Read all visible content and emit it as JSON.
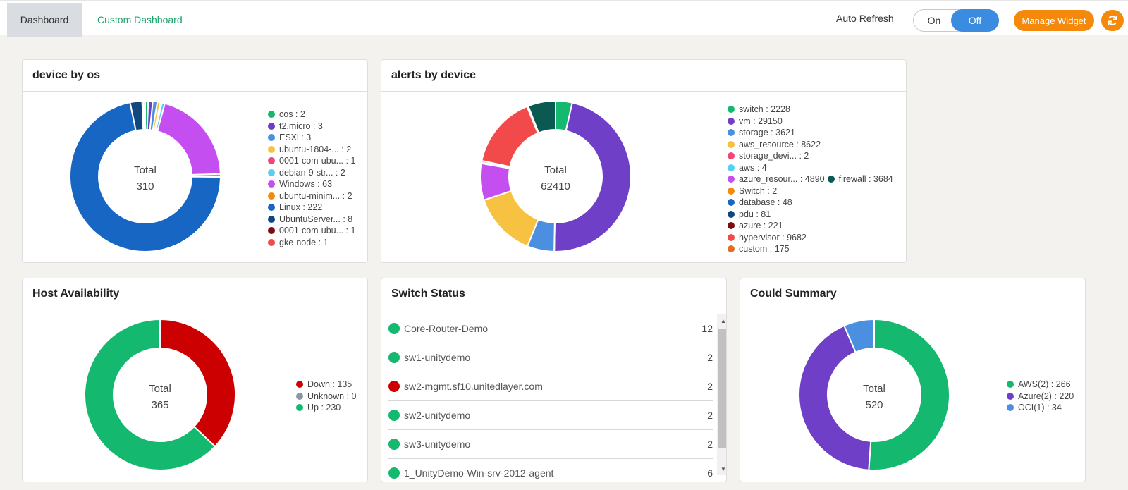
{
  "tabs": {
    "dashboard": "Dashboard",
    "custom": "Custom Dashboard"
  },
  "auto_refresh": {
    "label": "Auto Refresh",
    "on": "On",
    "off": "Off",
    "state": "Off"
  },
  "manage_widget": "Manage Widget",
  "icons": {
    "refresh": "refresh-icon"
  },
  "device_by_os": {
    "title": "device by os",
    "total_label": "Total",
    "total": "310",
    "legend": [
      {
        "label": "cos : 2",
        "color": "#14b86e"
      },
      {
        "label": "t2.micro : 3",
        "color": "#6f3fc7"
      },
      {
        "label": "ESXi : 3",
        "color": "#4b8fe0"
      },
      {
        "label": "ubuntu-1804-... : 2",
        "color": "#f7c242"
      },
      {
        "label": "0001-com-ubu... : 1",
        "color": "#f0477a"
      },
      {
        "label": "debian-9-str... : 2",
        "color": "#54d1f2"
      },
      {
        "label": "Windows : 63",
        "color": "#c54ef0"
      },
      {
        "label": "ubuntu-minim... : 2",
        "color": "#f5890c"
      },
      {
        "label": "Linux : 222",
        "color": "#1766c4"
      },
      {
        "label": "UbuntuServer... : 8",
        "color": "#12467e"
      },
      {
        "label": "0001-com-ubu... : 1",
        "color": "#7a0d0d"
      },
      {
        "label": "gke-node : 1",
        "color": "#f24a4a"
      }
    ]
  },
  "alerts_by_device": {
    "title": "alerts by device",
    "total_label": "Total",
    "total": "62410",
    "legend": [
      {
        "label": "switch : 2228",
        "color": "#14b86e"
      },
      {
        "label": "vm : 29150",
        "color": "#6f3fc7"
      },
      {
        "label": "storage : 3621",
        "color": "#4b8fe0"
      },
      {
        "label": "aws_resource : 8622",
        "color": "#f7c242"
      },
      {
        "label": "storage_devi... : 2",
        "color": "#f0477a"
      },
      {
        "label": "aws : 4",
        "color": "#54d1f2"
      },
      {
        "label": "azure_resour... : 4890",
        "color": "#c54ef0"
      },
      {
        "label": "firewall : 3684",
        "color": "#0b5a52"
      },
      {
        "label": "Switch : 2",
        "color": "#f5890c"
      },
      {
        "label": "database : 48",
        "color": "#1766c4"
      },
      {
        "label": "pdu : 81",
        "color": "#12467e"
      },
      {
        "label": "azure : 221",
        "color": "#7a0d0d"
      },
      {
        "label": "hypervisor : 9682",
        "color": "#f24a4a"
      },
      {
        "label": "custom : 175",
        "color": "#e07020"
      }
    ]
  },
  "host_availability": {
    "title": "Host Availability",
    "total_label": "Total",
    "total": "365",
    "legend": [
      {
        "label": "Down : 135",
        "color": "#cc0000"
      },
      {
        "label": "Unknown : 0",
        "color": "#8c96a0"
      },
      {
        "label": "Up : 230",
        "color": "#14b86e"
      }
    ]
  },
  "switch_status": {
    "title": "Switch Status",
    "rows": [
      {
        "name": "Core-Router-Demo",
        "count": "12",
        "color": "#14b86e"
      },
      {
        "name": "sw1-unitydemo",
        "count": "2",
        "color": "#14b86e"
      },
      {
        "name": "sw2-mgmt.sf10.unitedlayer.com",
        "count": "2",
        "color": "#cc0000"
      },
      {
        "name": "sw2-unitydemo",
        "count": "2",
        "color": "#14b86e"
      },
      {
        "name": "sw3-unitydemo",
        "count": "2",
        "color": "#14b86e"
      },
      {
        "name": "1_UnityDemo-Win-srv-2012-agent",
        "count": "6",
        "color": "#14b86e"
      }
    ]
  },
  "cloud_summary": {
    "title": "Could Summary",
    "total_label": "Total",
    "total": "520",
    "legend": [
      {
        "label": "AWS(2) : 266",
        "color": "#14b86e"
      },
      {
        "label": "Azure(2) : 220",
        "color": "#6f3fc7"
      },
      {
        "label": "OCI(1) : 34",
        "color": "#4b8fe0"
      }
    ]
  },
  "chart_data": [
    {
      "type": "pie",
      "title": "device by os",
      "categories": [
        "cos",
        "t2.micro",
        "ESXi",
        "ubuntu-1804-...",
        "0001-com-ubu...",
        "debian-9-str...",
        "Windows",
        "ubuntu-minim...",
        "Linux",
        "UbuntuServer...",
        "0001-com-ubu...",
        "gke-node"
      ],
      "values": [
        2,
        3,
        3,
        2,
        1,
        2,
        63,
        2,
        222,
        8,
        1,
        1
      ],
      "colors": [
        "#14b86e",
        "#6f3fc7",
        "#4b8fe0",
        "#f7c242",
        "#f0477a",
        "#54d1f2",
        "#c54ef0",
        "#f5890c",
        "#1766c4",
        "#12467e",
        "#7a0d0d",
        "#f24a4a"
      ]
    },
    {
      "type": "pie",
      "title": "alerts by device",
      "categories": [
        "switch",
        "vm",
        "storage",
        "aws_resource",
        "storage_devi...",
        "aws",
        "azure_resour...",
        "firewall",
        "Switch",
        "database",
        "pdu",
        "azure",
        "hypervisor",
        "custom"
      ],
      "values": [
        2228,
        29150,
        3621,
        8622,
        2,
        4,
        4890,
        3684,
        2,
        48,
        81,
        221,
        9682,
        175
      ],
      "colors": [
        "#14b86e",
        "#6f3fc7",
        "#4b8fe0",
        "#f7c242",
        "#f0477a",
        "#54d1f2",
        "#c54ef0",
        "#0b5a52",
        "#f5890c",
        "#1766c4",
        "#12467e",
        "#7a0d0d",
        "#f24a4a",
        "#e07020"
      ],
      "order": [
        0,
        1,
        2,
        3,
        4,
        5,
        6,
        8,
        9,
        10,
        11,
        12,
        13,
        7
      ]
    },
    {
      "type": "pie",
      "title": "Host Availability",
      "categories": [
        "Down",
        "Unknown",
        "Up"
      ],
      "values": [
        135,
        0,
        230
      ],
      "colors": [
        "#cc0000",
        "#8c96a0",
        "#14b86e"
      ]
    },
    {
      "type": "pie",
      "title": "Could Summary",
      "categories": [
        "AWS(2)",
        "Azure(2)",
        "OCI(1)"
      ],
      "values": [
        266,
        220,
        34
      ],
      "colors": [
        "#14b86e",
        "#6f3fc7",
        "#4b8fe0"
      ]
    }
  ]
}
